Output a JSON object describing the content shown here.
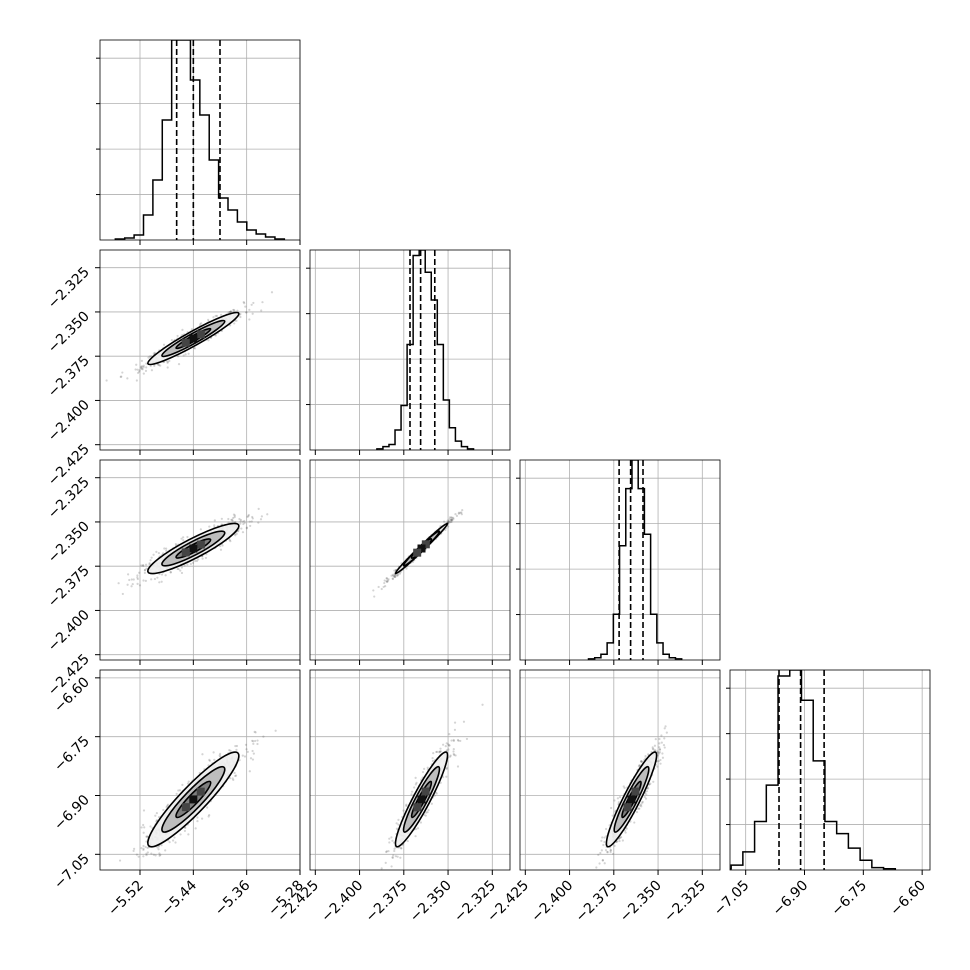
{
  "chart_data": {
    "type": "scatter",
    "title": "",
    "parameters": [
      {
        "range": [
          -5.58,
          -5.28
        ],
        "ticks": [
          -5.52,
          -5.44,
          -5.36,
          -5.28
        ],
        "tick_labels": [
          "−5.52",
          "−5.44",
          "−5.36",
          "−5.28"
        ],
        "quantiles": [
          -5.465,
          -5.44,
          -5.4
        ],
        "center": -5.44,
        "hist_counts": [
          1,
          2,
          5,
          25,
          60,
          120,
          200,
          200,
          160,
          125,
          80,
          42,
          30,
          18,
          10,
          6,
          3,
          1
        ]
      },
      {
        "range": [
          -2.428,
          -2.315
        ],
        "ticks": [
          -2.425,
          -2.4,
          -2.375,
          -2.35,
          -2.325
        ],
        "tick_labels": [
          "−2.425",
          "−2.400",
          "−2.375",
          "−2.350",
          "−2.325"
        ],
        "quantiles": [
          -2.3715,
          -2.3655,
          -2.3575
        ],
        "center": -2.365,
        "hist_counts": [
          1,
          3,
          5,
          18,
          40,
          95,
          175,
          180,
          160,
          135,
          95,
          45,
          20,
          8,
          3,
          1
        ]
      },
      {
        "range": [
          -2.428,
          -2.315
        ],
        "ticks": [
          -2.425,
          -2.4,
          -2.375,
          -2.35,
          -2.325
        ],
        "tick_labels": [
          "−2.425",
          "−2.400",
          "−2.375",
          "−2.350",
          "−2.325"
        ],
        "quantiles": [
          -2.372,
          -2.3655,
          -2.3585
        ],
        "center": -2.365,
        "hist_counts": [
          1,
          2,
          5,
          15,
          40,
          100,
          150,
          175,
          150,
          110,
          40,
          15,
          5,
          2,
          1
        ]
      },
      {
        "range": [
          -7.09,
          -6.58
        ],
        "ticks": [
          -7.05,
          -6.9,
          -6.75,
          -6.6
        ],
        "tick_labels": [
          "−7.05",
          "−6.90",
          "−6.75",
          "−6.60"
        ],
        "quantiles": [
          -6.965,
          -6.91,
          -6.85
        ],
        "center": -6.91,
        "hist_counts": [
          1,
          4,
          15,
          40,
          70,
          160,
          165,
          140,
          90,
          40,
          30,
          18,
          8,
          2,
          1
        ]
      }
    ],
    "correlations": {
      "1-0": 0.95,
      "2-0": 0.9,
      "2-1": 0.99,
      "3-0": 0.92,
      "3-1": 0.93,
      "3-2": 0.93
    },
    "quantile_lines": "dashed",
    "grid": true
  }
}
